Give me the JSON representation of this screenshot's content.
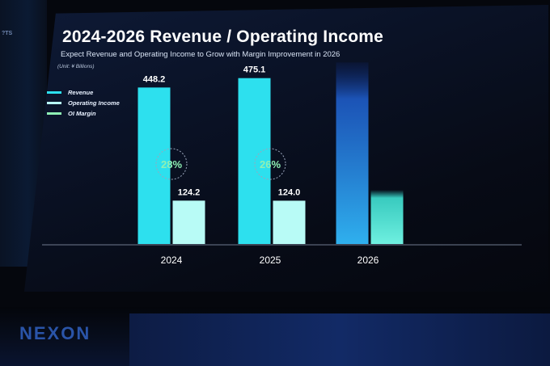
{
  "presentation": {
    "title": "2024-2026 Revenue / Operating Income",
    "subtitle": "Expect Revenue and Operating Income to Grow with Margin Improvement in 2026",
    "unit": "(Unit: ¥ Billions)",
    "brand": "NEXON"
  },
  "colors": {
    "revenue": "#2de0ee",
    "operating_income": "#b8fbf6",
    "oi_margin": "#8ef0b4",
    "background": "#070b16"
  },
  "chart_data": {
    "type": "bar",
    "title": "2024-2026 Revenue / Operating Income",
    "subtitle": "Expect Revenue and Operating Income to Grow with Margin Improvement in 2026",
    "unit": "(Unit: ¥ Billions)",
    "categories": [
      "2024",
      "2025",
      "2026"
    ],
    "legend_position": "top-left",
    "grid": false,
    "series": [
      {
        "name": "Revenue",
        "values": [
          448.2,
          475.1,
          520
        ],
        "labels": [
          "448.2",
          "475.1",
          ""
        ]
      },
      {
        "name": "Operating Income",
        "values": [
          124.2,
          124.0,
          155
        ],
        "labels": [
          "124.2",
          "124.0",
          ""
        ]
      }
    ],
    "oi_margin": {
      "name": "OI Margin",
      "labels": [
        "28%",
        "26%",
        ""
      ]
    },
    "ylim": [
      0,
      560
    ]
  }
}
